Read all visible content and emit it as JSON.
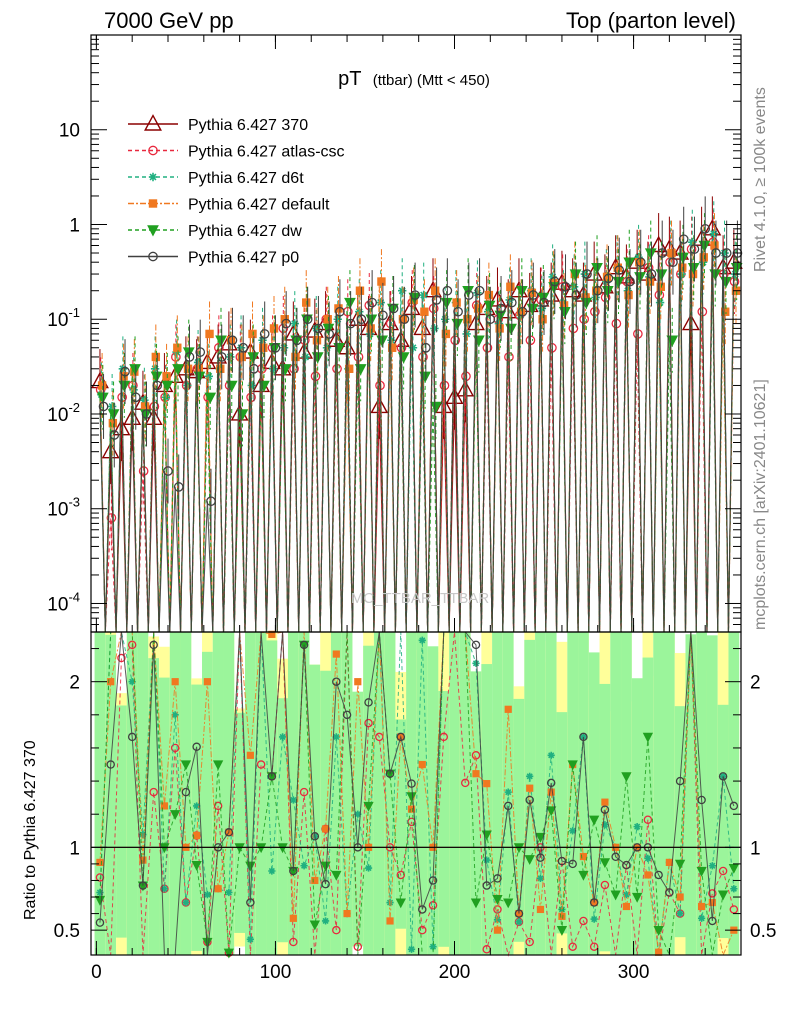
{
  "header": {
    "left": "7000 GeV pp",
    "right": "Top (parton level)"
  },
  "side_labels": {
    "rivet": "Rivet 4.1.0, ≥ 100k events",
    "mcplots": "mcplots.cern.ch [arXiv:2401.10621]"
  },
  "chart_data": {
    "type": "line",
    "title": {
      "main": "pT",
      "sub": "(ttbar) (Mtt < 450)"
    },
    "watermark": "MC_TTBAR_TTBAR",
    "xlabel": "",
    "ylabel": "",
    "ratio_ylabel": "Ratio to Pythia 6.427 370",
    "xlim": [
      -3,
      360
    ],
    "ylim_main": [
      5e-05,
      100
    ],
    "ylim_ratio": [
      0.35,
      2.3
    ],
    "x_ticks": [
      "0",
      "100",
      "200",
      "300"
    ],
    "y_ticks_main": [
      {
        "base": "10",
        "exp": "-4"
      },
      {
        "base": "10",
        "exp": "-3"
      },
      {
        "base": "10",
        "exp": "-2"
      },
      {
        "base": "10",
        "exp": "-1"
      },
      {
        "base": "1",
        "exp": ""
      },
      {
        "base": "10",
        "exp": ""
      }
    ],
    "y_ticks_ratio": [
      "0.5",
      "1",
      "2"
    ],
    "legend": [
      {
        "name": "Pythia 6.427 370",
        "color": "#8b0000",
        "dash": "",
        "marker": "triangle"
      },
      {
        "name": "Pythia 6.427 atlas-csc",
        "color": "#e8283e",
        "dash": "4,3",
        "marker": "circle-open"
      },
      {
        "name": "Pythia 6.427 d6t",
        "color": "#20b080",
        "dash": "4,3",
        "marker": "star"
      },
      {
        "name": "Pythia 6.427 default",
        "color": "#f07820",
        "dash": "6,2,2,2",
        "marker": "square"
      },
      {
        "name": "Pythia 6.427 dw",
        "color": "#20a020",
        "dash": "4,3",
        "marker": "triangle-down"
      },
      {
        "name": "Pythia 6.427 p0",
        "color": "#404040",
        "dash": "",
        "marker": "circle-open"
      }
    ],
    "series": [
      {
        "name": "Pythia 6.427 370",
        "x": [
          2,
          8,
          14,
          20,
          26,
          32,
          38,
          44,
          50,
          56,
          62,
          68,
          74,
          80,
          86,
          92,
          98,
          104,
          110,
          116,
          122,
          128,
          134,
          140,
          146,
          152,
          158,
          164,
          170,
          176,
          182,
          188,
          194,
          200,
          206,
          212,
          218,
          224,
          230,
          236,
          242,
          248,
          254,
          260,
          266,
          272,
          278,
          284,
          290,
          296,
          302,
          308,
          314,
          320,
          326,
          332,
          338,
          344,
          350,
          356
        ],
        "values": [
          0.022,
          0.004,
          0.007,
          0.009,
          0.013,
          0.009,
          0.02,
          0.025,
          0.03,
          0.028,
          0.035,
          0.04,
          0.055,
          0.01,
          0.045,
          0.02,
          0.035,
          0.03,
          0.07,
          0.045,
          0.075,
          0.09,
          0.06,
          0.05,
          0.1,
          0.08,
          0.012,
          0.09,
          0.06,
          0.13,
          0.08,
          0.2,
          0.012,
          0.015,
          0.018,
          0.09,
          0.13,
          0.16,
          0.12,
          0.2,
          0.14,
          0.16,
          0.18,
          0.24,
          0.2,
          0.18,
          0.3,
          0.22,
          0.35,
          0.28,
          0.4,
          0.3,
          0.6,
          0.55,
          0.5,
          0.09,
          0.7,
          0.9,
          0.35,
          0.4
        ]
      },
      {
        "name": "Pythia 6.427 atlas-csc",
        "x": [
          2,
          8,
          14,
          20,
          26,
          32,
          38,
          44,
          50,
          56,
          62,
          68,
          74,
          80,
          86,
          92,
          98,
          104,
          110,
          116,
          122,
          128,
          134,
          140,
          146,
          152,
          158,
          164,
          170,
          176,
          182,
          188,
          194,
          200,
          206,
          212,
          218,
          224,
          230,
          236,
          242,
          248,
          254,
          260,
          266,
          272,
          278,
          284,
          290,
          296,
          302,
          308,
          314,
          320,
          326,
          332,
          338,
          344,
          350,
          356
        ],
        "values": [
          0.018,
          0.0008,
          0.015,
          0.02,
          0.0025,
          0.012,
          0.015,
          0.04,
          0.02,
          0.03,
          0.015,
          0.05,
          0.02,
          0.04,
          0.015,
          0.03,
          0.05,
          0.08,
          0.03,
          0.06,
          0.025,
          0.1,
          0.03,
          0.12,
          0.04,
          0.14,
          0.02,
          0.09,
          0.05,
          0.15,
          0.04,
          0.13,
          0.02,
          0.06,
          0.025,
          0.14,
          0.05,
          0.1,
          0.04,
          0.11,
          0.06,
          0.16,
          0.05,
          0.22,
          0.08,
          0.1,
          0.12,
          0.17,
          0.09,
          0.25,
          0.07,
          0.35,
          0.18,
          0.4,
          0.3,
          0.55,
          0.12,
          0.65,
          0.3,
          0.25
        ]
      },
      {
        "name": "Pythia 6.427 d6t",
        "x": [
          2,
          8,
          14,
          20,
          26,
          32,
          38,
          44,
          50,
          56,
          62,
          68,
          74,
          80,
          86,
          92,
          98,
          104,
          110,
          116,
          122,
          128,
          134,
          140,
          146,
          152,
          158,
          164,
          170,
          176,
          182,
          188,
          194,
          200,
          206,
          212,
          218,
          224,
          230,
          236,
          242,
          248,
          254,
          260,
          266,
          272,
          278,
          284,
          290,
          296,
          302,
          308,
          314,
          320,
          326,
          332,
          338,
          344,
          350,
          356
        ],
        "values": [
          0.016,
          0.012,
          0.03,
          0.018,
          0.014,
          0.03,
          0.015,
          0.045,
          0.02,
          0.035,
          0.025,
          0.03,
          0.04,
          0.05,
          0.02,
          0.06,
          0.03,
          0.05,
          0.09,
          0.04,
          0.08,
          0.05,
          0.1,
          0.03,
          0.12,
          0.07,
          0.15,
          0.06,
          0.2,
          0.05,
          0.18,
          0.08,
          0.1,
          0.15,
          0.07,
          0.19,
          0.12,
          0.09,
          0.16,
          0.11,
          0.2,
          0.13,
          0.28,
          0.15,
          0.22,
          0.3,
          0.17,
          0.25,
          0.35,
          0.2,
          0.45,
          0.28,
          0.15,
          0.5,
          0.3,
          0.65,
          0.4,
          0.8,
          0.5,
          0.3
        ]
      },
      {
        "name": "Pythia 6.427 default",
        "x": [
          2,
          8,
          14,
          20,
          26,
          32,
          38,
          44,
          50,
          56,
          62,
          68,
          74,
          80,
          86,
          92,
          98,
          104,
          110,
          116,
          122,
          128,
          134,
          140,
          146,
          152,
          158,
          164,
          170,
          176,
          182,
          188,
          194,
          200,
          206,
          212,
          218,
          224,
          230,
          236,
          242,
          248,
          254,
          260,
          266,
          272,
          278,
          284,
          290,
          296,
          302,
          308,
          314,
          320,
          326,
          332,
          338,
          344,
          350,
          356
        ],
        "values": [
          0.02,
          0.008,
          0.025,
          0.028,
          0.012,
          0.04,
          0.025,
          0.05,
          0.03,
          0.03,
          0.07,
          0.03,
          0.06,
          0.04,
          0.07,
          0.05,
          0.08,
          0.1,
          0.04,
          0.15,
          0.06,
          0.1,
          0.13,
          0.03,
          0.2,
          0.08,
          0.25,
          0.05,
          0.1,
          0.16,
          0.12,
          0.2,
          0.07,
          0.15,
          0.1,
          0.13,
          0.18,
          0.08,
          0.22,
          0.12,
          0.19,
          0.1,
          0.24,
          0.14,
          0.3,
          0.17,
          0.2,
          0.28,
          0.35,
          0.18,
          0.4,
          0.25,
          0.22,
          0.5,
          0.35,
          0.3,
          0.45,
          0.6,
          0.12,
          0.2
        ]
      },
      {
        "name": "Pythia 6.427 dw",
        "x": [
          2,
          8,
          14,
          20,
          26,
          32,
          38,
          44,
          50,
          56,
          62,
          68,
          74,
          80,
          86,
          92,
          98,
          104,
          110,
          116,
          122,
          128,
          134,
          140,
          146,
          152,
          158,
          164,
          170,
          176,
          182,
          188,
          194,
          200,
          206,
          212,
          218,
          224,
          230,
          236,
          242,
          248,
          254,
          260,
          266,
          272,
          278,
          284,
          290,
          296,
          302,
          308,
          314,
          320,
          326,
          332,
          338,
          344,
          350,
          356
        ],
        "values": [
          0.015,
          0.01,
          0.02,
          0.03,
          0.01,
          0.025,
          0.02,
          0.03,
          0.045,
          0.025,
          0.015,
          0.06,
          0.02,
          0.01,
          0.04,
          0.02,
          0.05,
          0.03,
          0.06,
          0.1,
          0.04,
          0.08,
          0.05,
          0.15,
          0.03,
          0.1,
          0.06,
          0.13,
          0.04,
          0.17,
          0.025,
          0.012,
          0.15,
          0.09,
          0.2,
          0.06,
          0.14,
          0.11,
          0.08,
          0.2,
          0.13,
          0.17,
          0.22,
          0.12,
          0.3,
          0.15,
          0.35,
          0.2,
          0.25,
          0.4,
          0.28,
          0.5,
          0.3,
          0.06,
          0.45,
          0.35,
          0.6,
          0.3,
          0.25,
          0.35
        ]
      },
      {
        "name": "Pythia 6.427 p0",
        "x": [
          2,
          8,
          14,
          20,
          26,
          32,
          38,
          44,
          50,
          56,
          62,
          68,
          74,
          80,
          86,
          92,
          98,
          104,
          110,
          116,
          122,
          128,
          134,
          140,
          146,
          152,
          158,
          164,
          170,
          176,
          182,
          188,
          194,
          200,
          206,
          212,
          218,
          224,
          230,
          236,
          242,
          248,
          254,
          260,
          266,
          272,
          278,
          284,
          290,
          296,
          302,
          308,
          314,
          320,
          326,
          332,
          338,
          344,
          350,
          356
        ],
        "values": [
          0.012,
          0.006,
          0.028,
          0.015,
          0.01,
          0.02,
          0.0025,
          0.0017,
          0.04,
          0.045,
          0.0012,
          0.04,
          0.06,
          0.05,
          0.03,
          0.07,
          0.05,
          0.09,
          0.06,
          0.1,
          0.08,
          0.07,
          0.12,
          0.09,
          0.1,
          0.15,
          0.11,
          0.13,
          0.1,
          0.18,
          0.05,
          0.16,
          0.2,
          0.12,
          0.18,
          0.2,
          0.1,
          0.13,
          0.15,
          0.12,
          0.18,
          0.15,
          0.25,
          0.22,
          0.18,
          0.3,
          0.2,
          0.27,
          0.33,
          0.25,
          0.4,
          0.3,
          0.5,
          0.4,
          0.7,
          0.55,
          0.9,
          0.5,
          0.5,
          0.5
        ]
      }
    ]
  }
}
